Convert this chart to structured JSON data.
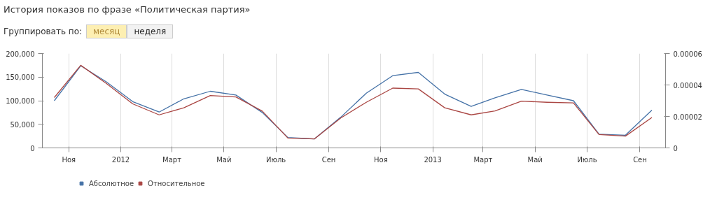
{
  "chart_data": {
    "type": "line",
    "title": "История показов по фразе «Политическая партия»",
    "annotations": [
      "Группировать по:",
      "месяц",
      "неделя"
    ],
    "x": [
      "2011-10-15",
      "2011-11-15",
      "2011-12-15",
      "2012-01-15",
      "2012-02-15",
      "2012-03-15",
      "2012-04-15",
      "2012-05-15",
      "2012-06-15",
      "2012-07-15",
      "2012-08-15",
      "2012-09-15",
      "2012-10-15",
      "2012-11-15",
      "2012-12-15",
      "2013-01-15",
      "2013-02-15",
      "2013-03-15",
      "2013-04-15",
      "2013-05-15",
      "2013-06-15",
      "2013-07-15",
      "2013-08-15",
      "2013-09-15"
    ],
    "series": [
      {
        "name": "Абсолютное",
        "color": "#4572a7",
        "values": [
          100000,
          174000,
          140000,
          98000,
          76000,
          104000,
          120000,
          112000,
          75000,
          22000,
          19000,
          65000,
          116000,
          153000,
          160000,
          114000,
          88000,
          106000,
          124000,
          112000,
          100000,
          29000,
          27000,
          80000
        ]
      },
      {
        "name": "Относительное",
        "color": "#aa4643",
        "axis": "y2",
        "values": [
          3.2e-05,
          5.25e-05,
          4.1e-05,
          2.8e-05,
          2.1e-05,
          2.55e-05,
          3.33e-05,
          3.24e-05,
          2.34e-05,
          6.3e-06,
          5.7e-06,
          1.9e-05,
          2.9e-05,
          3.8e-05,
          3.75e-05,
          2.55e-05,
          2.1e-05,
          2.35e-05,
          2.97e-05,
          2.9e-05,
          2.86e-05,
          8.5e-06,
          7.5e-06,
          1.93e-05
        ]
      }
    ],
    "xlim": [
      "2011-10-01",
      "2013-10-01"
    ],
    "xticks": [
      {
        "value": "2011-11-01",
        "label": "Ноя"
      },
      {
        "value": "2012-01-01",
        "label": "2012"
      },
      {
        "value": "2012-03-01",
        "label": "Март"
      },
      {
        "value": "2012-05-01",
        "label": "Май"
      },
      {
        "value": "2012-07-01",
        "label": "Июль"
      },
      {
        "value": "2012-09-01",
        "label": "Сен"
      },
      {
        "value": "2012-11-01",
        "label": "Ноя"
      },
      {
        "value": "2013-01-01",
        "label": "2013"
      },
      {
        "value": "2013-03-01",
        "label": "Март"
      },
      {
        "value": "2013-05-01",
        "label": "Май"
      },
      {
        "value": "2013-07-01",
        "label": "Июль"
      },
      {
        "value": "2013-09-01",
        "label": "Сен"
      }
    ],
    "ylim": [
      0,
      200000
    ],
    "yticks": [
      {
        "value": 0,
        "label": "0"
      },
      {
        "value": 50000,
        "label": "50,000"
      },
      {
        "value": 100000,
        "label": "100,000"
      },
      {
        "value": 150000,
        "label": "150,000"
      },
      {
        "value": 200000,
        "label": "200,000"
      }
    ],
    "y2lim": [
      0,
      6e-05
    ],
    "y2ticks": [
      {
        "value": 0,
        "label": "0"
      },
      {
        "value": 2e-05,
        "label": "0.00002"
      },
      {
        "value": 4e-05,
        "label": "0.00004"
      },
      {
        "value": 6e-05,
        "label": "0.00006"
      }
    ],
    "grid": "x",
    "legend": "bottom",
    "marker": "none",
    "line_style": "solid"
  }
}
